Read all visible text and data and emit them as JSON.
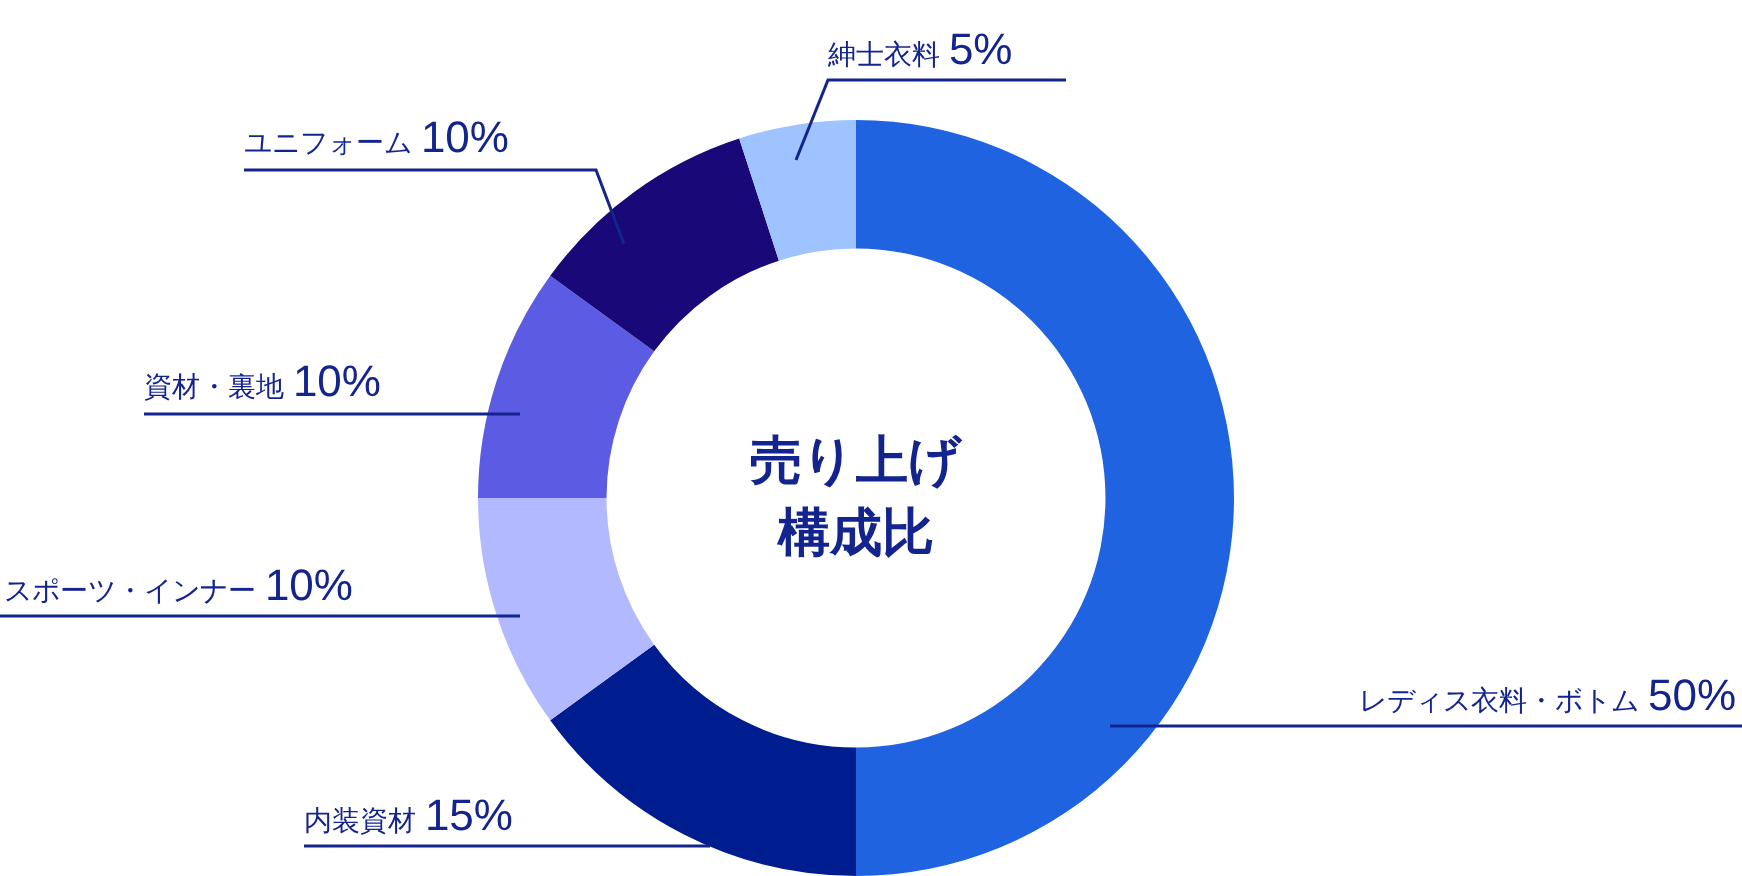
{
  "chart_data": {
    "type": "donut",
    "title": "売り上げ構成比",
    "categories": [
      "レディス衣料・ボトム",
      "内装資材",
      "スポーツ・インナー",
      "資材・裏地",
      "ユニフォーム",
      "紳士衣料"
    ],
    "values": [
      50,
      15,
      10,
      10,
      10,
      5
    ],
    "colors": [
      "#1f63e0",
      "#001d8f",
      "#b3b9ff",
      "#5b5be3",
      "#190878",
      "#9ec3ff"
    ],
    "value_labels": [
      "50%",
      "15%",
      "10%",
      "10%",
      "10%",
      "5%"
    ],
    "legend": false
  }
}
